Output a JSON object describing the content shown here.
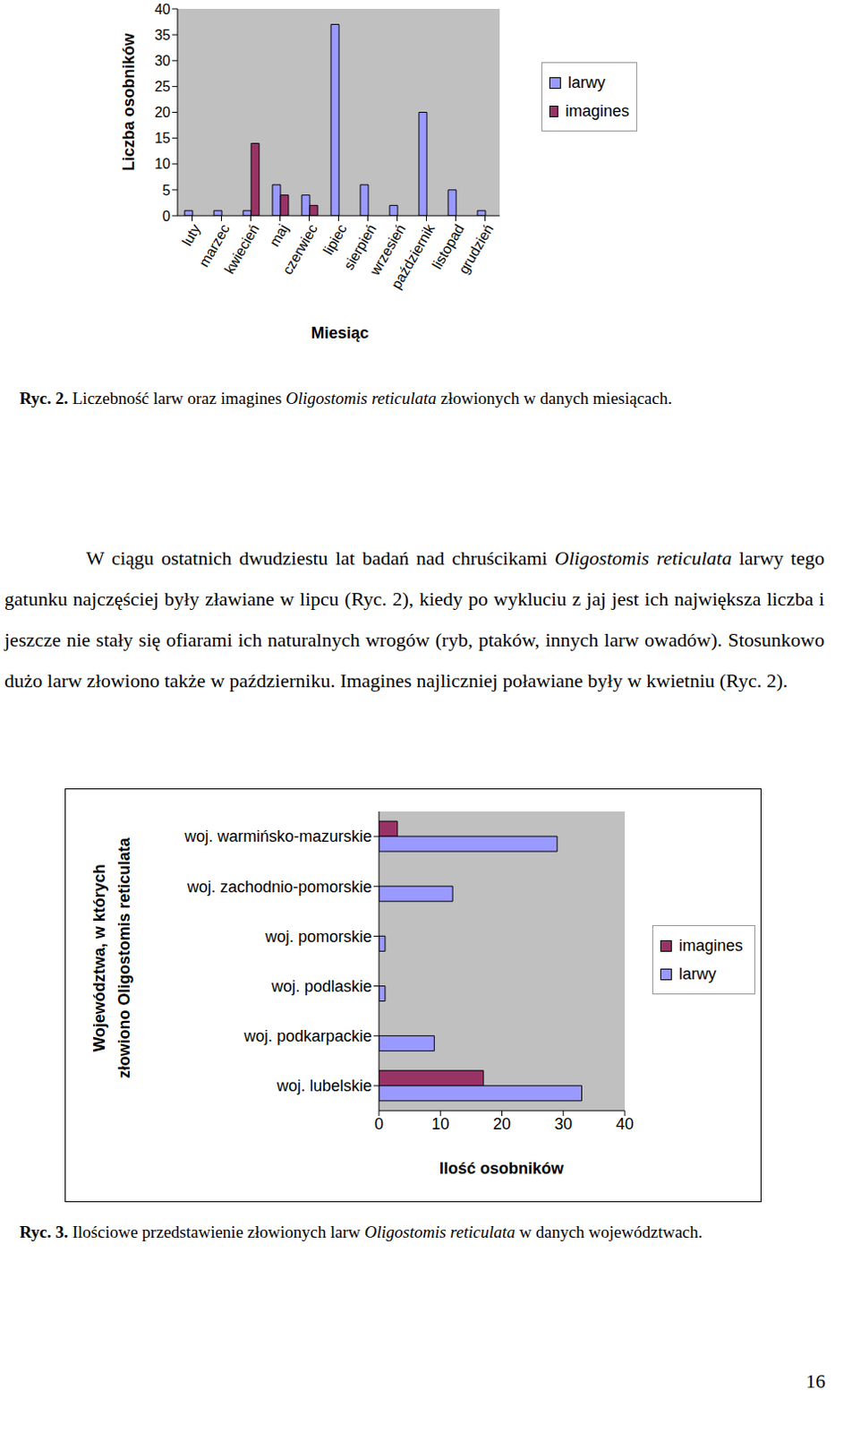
{
  "chart_data": [
    {
      "type": "bar",
      "xlabel": "Miesiąc",
      "ylabel": "Liczba osobników",
      "categories": [
        "luty",
        "marzec",
        "kwiecień",
        "maj",
        "czerwiec",
        "lipiec",
        "sierpień",
        "wrzesień",
        "październik",
        "listopad",
        "grudzień"
      ],
      "series": [
        {
          "name": "larwy",
          "color": "#9999ff",
          "values": [
            1,
            1,
            1,
            6,
            4,
            37,
            6,
            2,
            20,
            5,
            1
          ]
        },
        {
          "name": "imagines",
          "color": "#993366",
          "values": [
            null,
            null,
            14,
            4,
            2,
            null,
            null,
            null,
            null,
            null,
            null
          ]
        }
      ],
      "ylim": [
        0,
        40
      ],
      "yticks": [
        0,
        5,
        10,
        15,
        20,
        25,
        30,
        35,
        40
      ],
      "grid": false,
      "legend": "right"
    },
    {
      "type": "bar",
      "orientation": "horizontal",
      "xlabel": "Ilość osobników",
      "ylabel": [
        "Województwa, w których",
        "złowiono Oligostomis reticulata"
      ],
      "categories": [
        "woj. warmińsko-mazurskie",
        "woj. zachodnio-pomorskie",
        "woj. pomorskie",
        "woj. podlaskie",
        "woj. podkarpackie",
        "woj. lubelskie"
      ],
      "series": [
        {
          "name": "imagines",
          "color": "#993366",
          "values": [
            3,
            null,
            null,
            null,
            null,
            17
          ]
        },
        {
          "name": "larwy",
          "color": "#9999ff",
          "values": [
            29,
            12,
            1,
            1,
            9,
            33
          ]
        }
      ],
      "xlim": [
        0,
        40
      ],
      "xticks": [
        0,
        10,
        20,
        30,
        40
      ],
      "grid": false,
      "legend": "right"
    }
  ],
  "document": {
    "captions": [
      [
        {
          "text": "Ryc. 2.",
          "bold": true
        },
        {
          "text": " Liczebność larw oraz imagines "
        },
        {
          "text": "Oligostomis reticulata",
          "italic": true
        },
        {
          "text": " złowionych w danych miesiącach."
        }
      ],
      [
        {
          "text": "Ryc. 3.",
          "bold": true
        },
        {
          "text": " Ilościowe przedstawienie złowionych larw "
        },
        {
          "text": "Oligostomis reticulata",
          "italic": true
        },
        {
          "text": " w danych województwach."
        }
      ]
    ],
    "paragraph": [
      {
        "text": "W ciągu ostatnich dwudziestu lat badań nad chruścikami "
      },
      {
        "text": "Oligostomis reticulata",
        "italic": true
      },
      {
        "text": " larwy tego gatunku najczęściej były zławiane w lipcu (Ryc. 2), kiedy po wykluciu z jaj jest ich największa liczba i jeszcze nie stały się ofiarami ich naturalnych wrogów (ryb, ptaków, innych larw owadów). Stosunkowo dużo larw złowiono także w październiku. Imagines najliczniej poławiane były w kwietniu (Ryc. 2)."
      }
    ],
    "page_number": 16
  }
}
